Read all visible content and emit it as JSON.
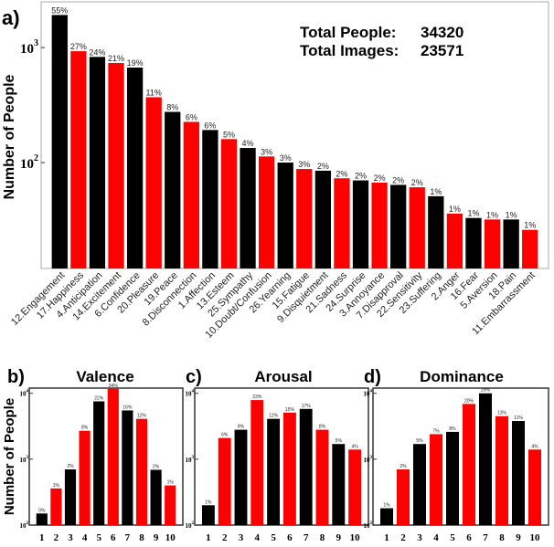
{
  "colors": {
    "black": "#000000",
    "red": "#ff0000"
  },
  "chart_data": [
    {
      "panel": "a)",
      "type": "bar",
      "title": "",
      "ylabel": "Number of People",
      "yscale": "log",
      "ylim": [
        12,
        2500
      ],
      "yticks": [
        {
          "value": 100,
          "label": "10",
          "exp": "2"
        },
        {
          "value": 1000,
          "label": "10",
          "exp": "3"
        }
      ],
      "annotations": [
        {
          "label": "Total  People:",
          "value": "34320"
        },
        {
          "label": "Total  Images:",
          "value": "23571"
        }
      ],
      "categories": [
        "12.Engagement",
        "17.Happiness",
        "4.Anticipation",
        "14.Excitement",
        "6.Confidence",
        "20.Pleasure",
        "19.Peace",
        "8.Disconnection",
        "1.Affection",
        "13.Esteem",
        "25.Sympathy",
        "10.Doubt/Confusion",
        "26.Yearning",
        "15.Fatigue",
        "9.Disquietment",
        "21.Sadness",
        "24.Surprise",
        "3.Annoyance",
        "7.Disapproval",
        "22.Sensitivity",
        "23.Suffering",
        "2.Anger",
        "16.Fear",
        "5.Aversion",
        "18.Pain",
        "11.Embarrassment"
      ],
      "values": [
        1920,
        930,
        830,
        735,
        670,
        370,
        276,
        226,
        192,
        160,
        134,
        113,
        100,
        88,
        85,
        73,
        70,
        67,
        64,
        61,
        51,
        36,
        33,
        32,
        32,
        26
      ],
      "data_labels": [
        "55%",
        "27%",
        "24%",
        "21%",
        "19%",
        "11%",
        "8%",
        "6%",
        "6%",
        "5%",
        "4%",
        "3%",
        "3%",
        "3%",
        "2%",
        "2%",
        "2%",
        "2%",
        "2%",
        "2%",
        "1%",
        "1%",
        "1%",
        "1%",
        "1%",
        "1%"
      ]
    },
    {
      "panel": "b)",
      "type": "bar",
      "title": "Valence",
      "ylabel": "Number of People",
      "yscale": "log",
      "ylim": [
        100,
        12000
      ],
      "yticks": [
        {
          "value": 100,
          "label": "10",
          "exp": "2"
        },
        {
          "value": 1000,
          "label": "10",
          "exp": "3"
        },
        {
          "value": 10000,
          "label": "10",
          "exp": "4"
        }
      ],
      "categories": [
        "1",
        "2",
        "3",
        "4",
        "5",
        "6",
        "7",
        "8",
        "9",
        "10"
      ],
      "values": [
        150,
        360,
        700,
        2700,
        7550,
        11700,
        5500,
        4100,
        690,
        400
      ],
      "data_labels": [
        "0%",
        "1%",
        "2%",
        "8%",
        "22%",
        "34%",
        "16%",
        "12%",
        "2%",
        "1%"
      ]
    },
    {
      "panel": "c)",
      "type": "bar",
      "title": "Arousal",
      "ylabel": "",
      "yscale": "log",
      "ylim": [
        100,
        12000
      ],
      "yticks": [
        {
          "value": 100,
          "label": "10",
          "exp": "2"
        },
        {
          "value": 1000,
          "label": "10",
          "exp": "3"
        },
        {
          "value": 10000,
          "label": "10",
          "exp": "4"
        }
      ],
      "categories": [
        "1",
        "2",
        "3",
        "4",
        "5",
        "6",
        "7",
        "8",
        "9",
        "10"
      ],
      "values": [
        200,
        2100,
        2800,
        7900,
        4100,
        5100,
        5800,
        2800,
        1700,
        1400
      ],
      "data_labels": [
        "1%",
        "6%",
        "8%",
        "23%",
        "12%",
        "15%",
        "17%",
        "8%",
        "5%",
        "4%"
      ]
    },
    {
      "panel": "d)",
      "type": "bar",
      "title": "Dominance",
      "ylabel": "",
      "yscale": "log",
      "ylim": [
        100,
        12000
      ],
      "yticks": [
        {
          "value": 100,
          "label": "10",
          "exp": "2"
        },
        {
          "value": 1000,
          "label": "10",
          "exp": "3"
        },
        {
          "value": 10000,
          "label": "10",
          "exp": "4"
        }
      ],
      "categories": [
        "1",
        "2",
        "3",
        "4",
        "5",
        "6",
        "7",
        "8",
        "9",
        "10"
      ],
      "values": [
        180,
        700,
        1700,
        2400,
        2600,
        6900,
        10000,
        4500,
        3800,
        1400
      ],
      "data_labels": [
        "1%",
        "2%",
        "5%",
        "7%",
        "8%",
        "20%",
        "29%",
        "13%",
        "11%",
        "4%"
      ]
    }
  ]
}
